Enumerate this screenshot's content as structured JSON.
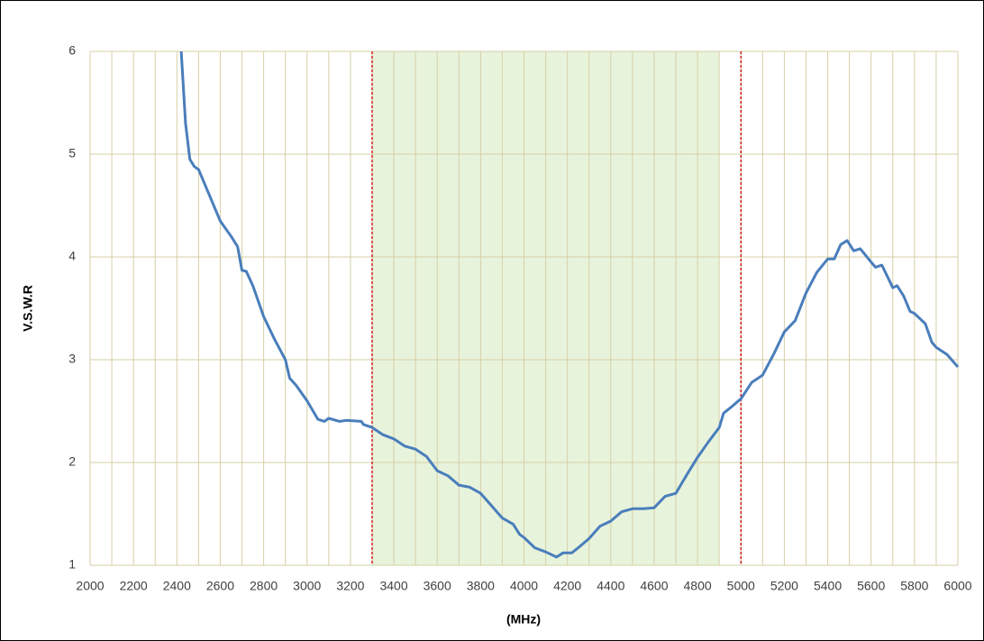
{
  "chart_data": {
    "type": "line",
    "xlabel": "(MHz)",
    "ylabel": "V.S.W.R",
    "x": [
      2420,
      2440,
      2460,
      2480,
      2500,
      2550,
      2600,
      2650,
      2680,
      2700,
      2720,
      2750,
      2800,
      2850,
      2900,
      2920,
      2950,
      3000,
      3050,
      3080,
      3100,
      3150,
      3180,
      3250,
      3260,
      3300,
      3350,
      3400,
      3450,
      3500,
      3550,
      3600,
      3650,
      3700,
      3750,
      3800,
      3850,
      3900,
      3950,
      3980,
      4000,
      4050,
      4100,
      4150,
      4180,
      4220,
      4250,
      4300,
      4350,
      4400,
      4450,
      4500,
      4550,
      4600,
      4650,
      4700,
      4750,
      4800,
      4850,
      4900,
      4920,
      4950,
      5000,
      5050,
      5100,
      5150,
      5200,
      5250,
      5300,
      5350,
      5400,
      5430,
      5460,
      5490,
      5520,
      5550,
      5600,
      5620,
      5650,
      5700,
      5720,
      5750,
      5780,
      5800,
      5850,
      5880,
      5900,
      5950,
      6000
    ],
    "values": [
      6.0,
      5.3,
      4.95,
      4.88,
      4.85,
      4.6,
      4.35,
      4.2,
      4.1,
      3.87,
      3.86,
      3.72,
      3.42,
      3.2,
      3.0,
      2.82,
      2.75,
      2.6,
      2.42,
      2.4,
      2.43,
      2.4,
      2.41,
      2.4,
      2.37,
      2.34,
      2.27,
      2.23,
      2.16,
      2.13,
      2.06,
      1.92,
      1.87,
      1.78,
      1.76,
      1.7,
      1.58,
      1.46,
      1.4,
      1.3,
      1.27,
      1.17,
      1.13,
      1.08,
      1.12,
      1.12,
      1.17,
      1.26,
      1.38,
      1.43,
      1.52,
      1.55,
      1.55,
      1.56,
      1.67,
      1.7,
      1.88,
      2.05,
      2.2,
      2.34,
      2.48,
      2.53,
      2.62,
      2.78,
      2.85,
      3.05,
      3.27,
      3.38,
      3.65,
      3.85,
      3.98,
      3.98,
      4.12,
      4.16,
      4.06,
      4.08,
      3.95,
      3.9,
      3.92,
      3.7,
      3.72,
      3.62,
      3.47,
      3.45,
      3.35,
      3.17,
      3.12,
      3.05,
      2.93
    ],
    "color": "#4a7ebb",
    "xlim": [
      2000,
      6000
    ],
    "ylim": [
      1,
      6
    ],
    "xticks": [
      2000,
      2200,
      2400,
      2600,
      2800,
      3000,
      3200,
      3400,
      3600,
      3800,
      4000,
      4200,
      4400,
      4600,
      4800,
      5000,
      5200,
      5400,
      5600,
      5800,
      6000
    ],
    "xgrid": [
      2000,
      2100,
      2200,
      2300,
      2400,
      2500,
      2600,
      2700,
      2800,
      2900,
      3000,
      3100,
      3200,
      3300,
      3400,
      3500,
      3600,
      3700,
      3800,
      3900,
      4000,
      4100,
      4200,
      4300,
      4400,
      4500,
      4600,
      4700,
      4800,
      4900,
      5000,
      5100,
      5200,
      5300,
      5400,
      5500,
      5600,
      5700,
      5800,
      5900,
      6000
    ],
    "yticks": [
      1,
      2,
      3,
      4,
      5,
      6
    ],
    "grid": true,
    "shaded_band": [
      3300,
      4900
    ],
    "band_color": "#e8f3dc",
    "markers": [
      3300,
      5000
    ],
    "marker_color": "#cc0000"
  }
}
